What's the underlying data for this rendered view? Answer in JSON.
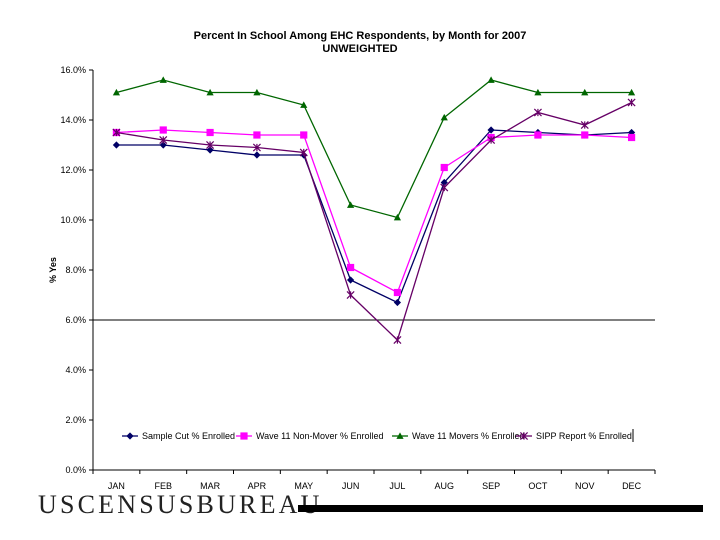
{
  "chart_data": {
    "type": "line",
    "title": "Percent In School Among EHC Respondents, by Month for 2007",
    "subtitle": "UNWEIGHTED",
    "xlabel": "",
    "ylabel": "% Yes",
    "categories": [
      "JAN",
      "FEB",
      "MAR",
      "APR",
      "MAY",
      "JUN",
      "JUL",
      "AUG",
      "SEP",
      "OCT",
      "NOV",
      "DEC"
    ],
    "ylim": [
      0,
      16
    ],
    "yticks": [
      "0.0%",
      "2.0%",
      "4.0%",
      "6.0%",
      "8.0%",
      "10.0%",
      "12.0%",
      "14.0%",
      "16.0%"
    ],
    "series": [
      {
        "name": "Sample Cut % Enrolled",
        "color": "#000066",
        "marker": "diamond",
        "values": [
          13.0,
          13.0,
          12.8,
          12.6,
          12.6,
          7.6,
          6.7,
          11.5,
          13.6,
          13.5,
          13.4,
          13.5
        ]
      },
      {
        "name": "Wave 11 Non-Mover % Enrolled",
        "color": "#ff00ff",
        "marker": "square",
        "values": [
          13.5,
          13.6,
          13.5,
          13.4,
          13.4,
          8.1,
          7.1,
          12.1,
          13.3,
          13.4,
          13.4,
          13.3
        ]
      },
      {
        "name": "Wave 11 Movers % Enrolled",
        "color": "#006600",
        "marker": "triangle",
        "values": [
          15.1,
          15.6,
          15.1,
          15.1,
          14.6,
          10.6,
          10.1,
          14.1,
          15.6,
          15.1,
          15.1,
          15.1
        ]
      },
      {
        "name": "SIPP Report % Enrolled",
        "color": "#660066",
        "marker": "star",
        "values": [
          13.5,
          13.2,
          13.0,
          12.9,
          12.7,
          7.0,
          5.2,
          11.3,
          13.2,
          14.3,
          13.8,
          14.7
        ]
      }
    ],
    "legend": "bottom-inside",
    "grid": "none"
  },
  "footer": {
    "logo_text": "USCENSUSBUREAU"
  }
}
